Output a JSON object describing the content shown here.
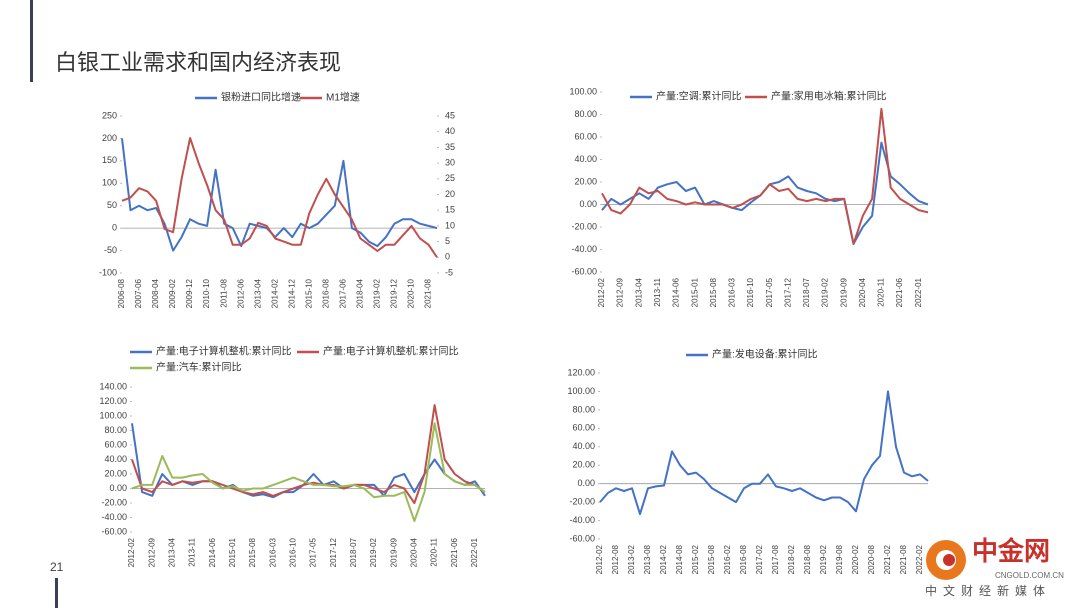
{
  "header": {
    "title": "白银工业需求和国内经济表现",
    "page": "21"
  },
  "watermark": {
    "name": "中金网",
    "url": "CNGOLD.COM.CN",
    "slogan": "中文财经新媒体"
  },
  "chart_data": [
    {
      "type": "line",
      "categories": [
        "2006-08",
        null,
        "2007-06",
        null,
        "2008-04",
        null,
        "2009-02",
        null,
        "2009-12",
        null,
        "2010-10",
        null,
        "2011-08",
        null,
        "2012-06",
        null,
        "2013-04",
        null,
        "2014-02",
        null,
        "2014-12",
        null,
        "2015-10",
        null,
        "2016-08",
        null,
        "2017-06",
        null,
        "2018-04",
        null,
        "2019-02",
        null,
        "2019-12",
        null,
        "2020-10",
        null,
        "2021-08",
        null
      ],
      "series": [
        {
          "name": "银粉进口同比增速",
          "color": "#4472c4",
          "values": [
            200,
            40,
            50,
            40,
            45,
            10,
            -50,
            -20,
            20,
            10,
            5,
            130,
            10,
            0,
            -40,
            10,
            5,
            0,
            -20,
            0,
            -20,
            10,
            0,
            10,
            30,
            50,
            150,
            0,
            -10,
            -30,
            -40,
            -20,
            10,
            20,
            20,
            10,
            5,
            0
          ]
        },
        {
          "name": "M1增速",
          "color": "#c0504d",
          "axis": "y2",
          "values": [
            18,
            19,
            22,
            21,
            18,
            9,
            8,
            25,
            38,
            30,
            23,
            15,
            12,
            4,
            4,
            6,
            11,
            10,
            6,
            5,
            4,
            4,
            14,
            20,
            25,
            20,
            16,
            12,
            6,
            4,
            2,
            4,
            4,
            7,
            10,
            6,
            4,
            0
          ]
        }
      ],
      "ylim": [
        -100,
        250
      ],
      "yticks": [
        -100,
        -50,
        0,
        50,
        100,
        150,
        200,
        250
      ],
      "y2lim": [
        -5,
        45
      ],
      "y2ticks": [
        -5,
        0,
        5,
        10,
        15,
        20,
        25,
        30,
        35,
        40,
        45
      ]
    },
    {
      "type": "line",
      "categories": [
        "2012-02",
        null,
        "2012-09",
        null,
        "2013-04",
        null,
        "2013-11",
        null,
        "2014-06",
        null,
        "2015-01",
        null,
        "2015-08",
        null,
        "2016-03",
        null,
        "2016-10",
        null,
        "2017-05",
        null,
        "2017-12",
        null,
        "2018-07",
        null,
        "2019-02",
        null,
        "2019-09",
        null,
        "2020-04",
        null,
        "2020-11",
        null,
        "2021-06",
        null,
        "2022-01",
        null
      ],
      "series": [
        {
          "name": "产量:空调:累计同比",
          "color": "#4472c4",
          "values": [
            -5,
            5,
            0,
            5,
            10,
            5,
            15,
            18,
            20,
            12,
            15,
            0,
            3,
            0,
            -3,
            -5,
            2,
            8,
            18,
            20,
            25,
            15,
            12,
            10,
            5,
            3,
            5,
            -35,
            -20,
            -10,
            55,
            25,
            18,
            10,
            3,
            0
          ]
        },
        {
          "name": "产量:家用电冰箱:累计同比",
          "color": "#c0504d",
          "values": [
            10,
            -5,
            -8,
            0,
            15,
            10,
            12,
            5,
            3,
            0,
            2,
            0,
            0,
            0,
            -3,
            0,
            5,
            8,
            18,
            12,
            14,
            5,
            3,
            5,
            3,
            5,
            5,
            -35,
            -10,
            5,
            85,
            15,
            5,
            0,
            -5,
            -7
          ]
        }
      ],
      "ylim": [
        -60,
        100
      ],
      "yticks": [
        {
          "value": -60,
          "label": "-60.00"
        },
        {
          "value": -40,
          "label": "-40.00"
        },
        {
          "value": -20,
          "label": "-20.00"
        },
        {
          "value": 0,
          "label": "0.00"
        },
        {
          "value": 20,
          "label": "20.00"
        },
        {
          "value": 40,
          "label": "40.00"
        },
        {
          "value": 60,
          "label": "60.00"
        },
        {
          "value": 80,
          "label": "80.00"
        },
        {
          "value": 100,
          "label": "100.00"
        }
      ]
    },
    {
      "type": "line",
      "categories": [
        "2012-02",
        null,
        "2012-09",
        null,
        "2013-04",
        null,
        "2013-11",
        null,
        "2014-06",
        null,
        "2015-01",
        null,
        "2015-08",
        null,
        "2016-03",
        null,
        "2016-10",
        null,
        "2017-05",
        null,
        "2017-12",
        null,
        "2018-07",
        null,
        "2019-02",
        null,
        "2019-09",
        null,
        "2020-04",
        null,
        "2020-11",
        null,
        "2021-06",
        null,
        "2022-01",
        null
      ],
      "series": [
        {
          "name": "产量:电子计算机整机:累计同比",
          "color": "#4472c4",
          "values": [
            90,
            -5,
            -10,
            20,
            5,
            10,
            5,
            10,
            10,
            0,
            5,
            -5,
            -10,
            -8,
            -12,
            -5,
            -5,
            5,
            20,
            5,
            10,
            0,
            5,
            5,
            5,
            -10,
            15,
            20,
            -5,
            20,
            40,
            20,
            10,
            5,
            10,
            -10
          ]
        },
        {
          "name": "产量:电子计算机整机:累计同比",
          "color": "#c0504d",
          "values": [
            40,
            0,
            -5,
            10,
            5,
            10,
            8,
            10,
            10,
            5,
            0,
            -5,
            -8,
            -5,
            -10,
            -5,
            0,
            5,
            8,
            5,
            5,
            0,
            5,
            5,
            0,
            -5,
            5,
            0,
            -20,
            20,
            115,
            40,
            20,
            10,
            5,
            -5
          ]
        },
        {
          "name": "产量:汽车:累计同比",
          "color": "#9bbb59",
          "values": [
            0,
            5,
            5,
            45,
            15,
            15,
            18,
            20,
            8,
            0,
            3,
            -3,
            0,
            0,
            5,
            10,
            15,
            10,
            5,
            5,
            3,
            3,
            5,
            0,
            -12,
            -10,
            -10,
            -5,
            -45,
            -5,
            90,
            20,
            10,
            5,
            5,
            -5
          ]
        }
      ],
      "ylim": [
        -60,
        140
      ],
      "yticks": [
        {
          "value": -60,
          "label": "-60.00"
        },
        {
          "value": -40,
          "label": "-40.00"
        },
        {
          "value": -20,
          "label": "-20.00"
        },
        {
          "value": 0,
          "label": "0.00"
        },
        {
          "value": 20,
          "label": "20.00"
        },
        {
          "value": 40,
          "label": "40.00"
        },
        {
          "value": 60,
          "label": "60.00"
        },
        {
          "value": 80,
          "label": "80.00"
        },
        {
          "value": 100,
          "label": "100.00"
        },
        {
          "value": 120,
          "label": "120.00"
        },
        {
          "value": 140,
          "label": "140.00"
        }
      ]
    },
    {
      "type": "line",
      "categories": [
        "2012-02",
        null,
        "2012-08",
        null,
        "2013-02",
        null,
        "2013-08",
        null,
        "2014-02",
        null,
        "2014-08",
        null,
        "2015-02",
        null,
        "2015-08",
        null,
        "2016-02",
        null,
        "2016-08",
        null,
        "2017-02",
        null,
        "2017-08",
        null,
        "2018-02",
        null,
        "2018-08",
        null,
        "2019-02",
        null,
        "2019-08",
        null,
        "2020-02",
        null,
        "2020-08",
        null,
        "2021-02",
        null,
        "2021-08",
        null,
        "2022-02",
        null
      ],
      "series": [
        {
          "name": "产量:发电设备:累计同比",
          "color": "#4472c4",
          "values": [
            -20,
            -10,
            -5,
            -8,
            -5,
            -33,
            -5,
            -3,
            -2,
            35,
            20,
            10,
            12,
            5,
            -5,
            -10,
            -15,
            -20,
            -5,
            0,
            0,
            10,
            -3,
            -5,
            -8,
            -5,
            -10,
            -15,
            -18,
            -15,
            -15,
            -20,
            -30,
            5,
            20,
            30,
            100,
            40,
            12,
            8,
            10,
            3
          ]
        }
      ],
      "ylim": [
        -60,
        120
      ],
      "yticks": [
        {
          "value": -60,
          "label": "-60.00"
        },
        {
          "value": -40,
          "label": "-40.00"
        },
        {
          "value": -20,
          "label": "-20.00"
        },
        {
          "value": 0,
          "label": "0.00"
        },
        {
          "value": 20,
          "label": "20.00"
        },
        {
          "value": 40,
          "label": "40.00"
        },
        {
          "value": 60,
          "label": "60.00"
        },
        {
          "value": 80,
          "label": "80.00"
        },
        {
          "value": 100,
          "label": "100.00"
        },
        {
          "value": 120,
          "label": "120.00"
        }
      ]
    }
  ]
}
